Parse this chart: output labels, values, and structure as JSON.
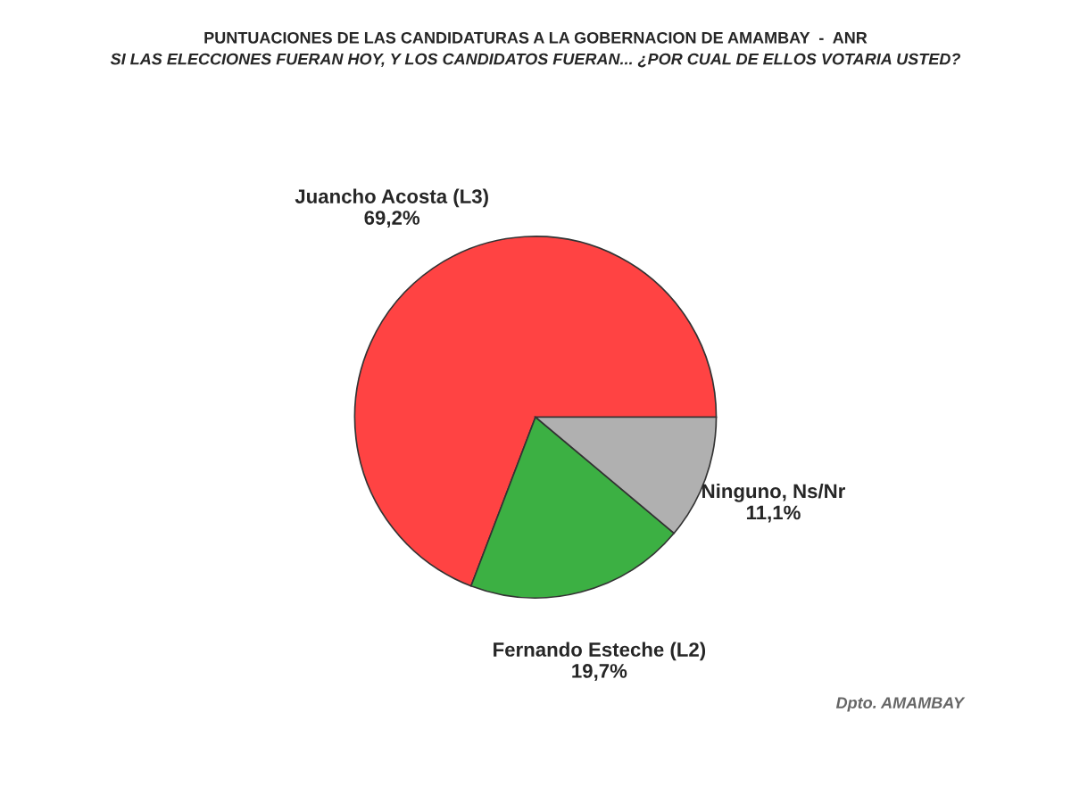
{
  "chart_data": {
    "type": "pie",
    "title": "PUNTUACIONES DE LAS CANDIDATURAS A LA GOBERNACION DE AMAMBAY  -  ANR",
    "subtitle": "SI LAS ELECCIONES FUERAN HOY, Y LOS CANDIDATOS FUERAN... ¿POR CUAL DE ELLOS VOTARIA USTED?",
    "categories": [
      "Juancho Acosta (L3)",
      "Fernando Esteche (L2)",
      "Ninguno, Ns/Nr"
    ],
    "values": [
      69.2,
      19.7,
      11.1
    ],
    "value_labels": [
      "69,2%",
      "19,7%",
      "11,1%"
    ],
    "colors": [
      "#ff4343",
      "#3cb043",
      "#b0b0b0"
    ],
    "annotations": [
      "Dpto. AMAMBAY"
    ]
  }
}
